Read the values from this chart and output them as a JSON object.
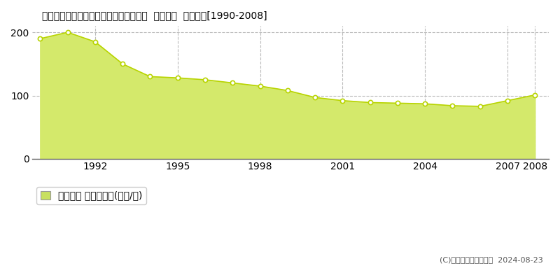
{
  "title": "東京都葛飾区東堀切２丁目５５６番５外  地価公示  地価推移[1990-2008]",
  "years": [
    1990,
    1991,
    1992,
    1993,
    1994,
    1995,
    1996,
    1997,
    1998,
    1999,
    2000,
    2001,
    2002,
    2003,
    2004,
    2005,
    2006,
    2007,
    2008
  ],
  "values": [
    190,
    200,
    185,
    150,
    130,
    128,
    125,
    120,
    115,
    108,
    97,
    92,
    89,
    88,
    87,
    84,
    83,
    92,
    101
  ],
  "fill_color": "#d4e96b",
  "line_color": "#b8d400",
  "marker_color": "#ffffff",
  "marker_edge_color": "#b8d400",
  "background_color": "#ffffff",
  "grid_color": "#bbbbbb",
  "yticks": [
    0,
    100,
    200
  ],
  "xticks": [
    1992,
    1995,
    1998,
    2001,
    2004,
    2007,
    2008
  ],
  "ylim": [
    0,
    210
  ],
  "xlim": [
    1989.7,
    2008.5
  ],
  "legend_label": "地価公示 平均坪単価(万円/坪)",
  "legend_color": "#c8e060",
  "copyright_text": "(C)土地価格ドットコム  2024-08-23",
  "title_fontsize": 13,
  "tick_fontsize": 10,
  "legend_fontsize": 10
}
